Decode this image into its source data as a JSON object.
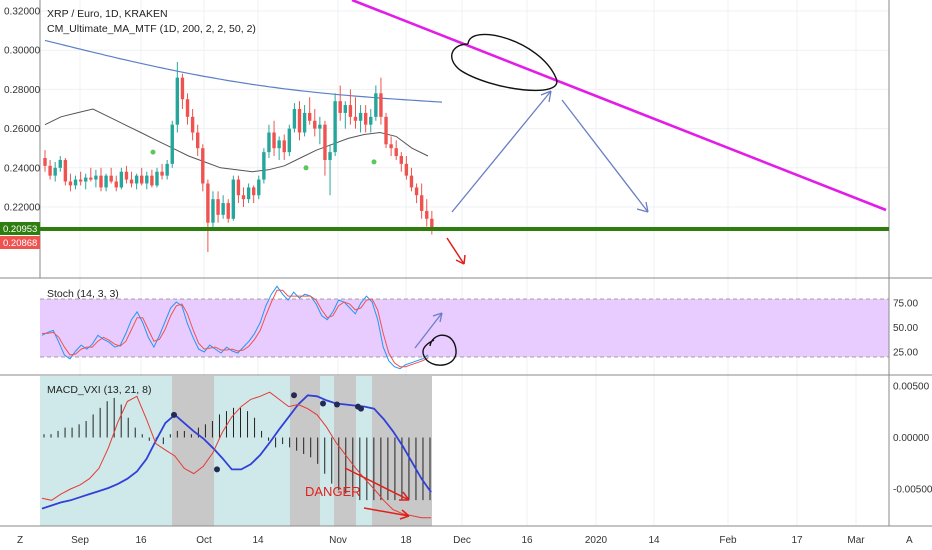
{
  "chart_data": [
    {
      "type": "candlestick",
      "title": "XRP / Euro, 1D, KRAKEN",
      "subtitle": "CM_Ultimate_MA_MTF (1D, 200, 2, 2, 50, 2)",
      "ylim": [
        0.2,
        0.32
      ],
      "yticks": [
        "0.32000",
        "0.30000",
        "0.28000",
        "0.26000",
        "0.24000",
        "0.22000"
      ],
      "price_tags": [
        {
          "label": "0.20953",
          "value": 0.20953,
          "color": "#2e7d0f"
        },
        {
          "label": "0.20868",
          "value": 0.20868,
          "color": "#ef5350"
        }
      ],
      "support_level": 0.20953,
      "candles": [
        [
          0.245,
          0.249,
          0.238,
          0.241
        ],
        [
          0.241,
          0.244,
          0.234,
          0.236
        ],
        [
          0.236,
          0.243,
          0.233,
          0.24
        ],
        [
          0.24,
          0.246,
          0.238,
          0.244
        ],
        [
          0.244,
          0.245,
          0.231,
          0.233
        ],
        [
          0.233,
          0.237,
          0.228,
          0.231
        ],
        [
          0.231,
          0.236,
          0.229,
          0.234
        ],
        [
          0.234,
          0.238,
          0.231,
          0.233
        ],
        [
          0.233,
          0.237,
          0.229,
          0.235
        ],
        [
          0.235,
          0.24,
          0.233,
          0.234
        ],
        [
          0.234,
          0.239,
          0.23,
          0.236
        ],
        [
          0.236,
          0.24,
          0.228,
          0.23
        ],
        [
          0.23,
          0.237,
          0.228,
          0.236
        ],
        [
          0.236,
          0.24,
          0.232,
          0.233
        ],
        [
          0.233,
          0.236,
          0.228,
          0.23
        ],
        [
          0.23,
          0.24,
          0.229,
          0.238
        ],
        [
          0.238,
          0.241,
          0.232,
          0.234
        ],
        [
          0.234,
          0.238,
          0.23,
          0.232
        ],
        [
          0.232,
          0.237,
          0.229,
          0.236
        ],
        [
          0.236,
          0.24,
          0.231,
          0.232
        ],
        [
          0.232,
          0.238,
          0.229,
          0.236
        ],
        [
          0.236,
          0.239,
          0.23,
          0.231
        ],
        [
          0.231,
          0.24,
          0.23,
          0.238
        ],
        [
          0.238,
          0.242,
          0.234,
          0.236
        ],
        [
          0.236,
          0.244,
          0.234,
          0.242
        ],
        [
          0.242,
          0.264,
          0.24,
          0.262
        ],
        [
          0.262,
          0.294,
          0.258,
          0.286
        ],
        [
          0.286,
          0.288,
          0.27,
          0.275
        ],
        [
          0.275,
          0.278,
          0.262,
          0.266
        ],
        [
          0.266,
          0.27,
          0.254,
          0.258
        ],
        [
          0.258,
          0.262,
          0.246,
          0.25
        ],
        [
          0.25,
          0.252,
          0.228,
          0.232
        ],
        [
          0.232,
          0.234,
          0.197,
          0.212
        ],
        [
          0.212,
          0.228,
          0.208,
          0.224
        ],
        [
          0.224,
          0.228,
          0.212,
          0.216
        ],
        [
          0.216,
          0.226,
          0.214,
          0.222
        ],
        [
          0.222,
          0.224,
          0.212,
          0.214
        ],
        [
          0.214,
          0.236,
          0.213,
          0.234
        ],
        [
          0.234,
          0.236,
          0.222,
          0.226
        ],
        [
          0.226,
          0.23,
          0.22,
          0.224
        ],
        [
          0.224,
          0.232,
          0.222,
          0.23
        ],
        [
          0.23,
          0.231,
          0.222,
          0.226
        ],
        [
          0.226,
          0.236,
          0.224,
          0.234
        ],
        [
          0.234,
          0.25,
          0.232,
          0.248
        ],
        [
          0.248,
          0.262,
          0.245,
          0.258
        ],
        [
          0.258,
          0.264,
          0.246,
          0.25
        ],
        [
          0.25,
          0.256,
          0.244,
          0.254
        ],
        [
          0.254,
          0.257,
          0.244,
          0.248
        ],
        [
          0.248,
          0.262,
          0.246,
          0.26
        ],
        [
          0.26,
          0.273,
          0.258,
          0.27
        ],
        [
          0.27,
          0.274,
          0.254,
          0.258
        ],
        [
          0.258,
          0.272,
          0.256,
          0.268
        ],
        [
          0.268,
          0.276,
          0.262,
          0.264
        ],
        [
          0.264,
          0.27,
          0.256,
          0.26
        ],
        [
          0.26,
          0.266,
          0.252,
          0.262
        ],
        [
          0.262,
          0.264,
          0.236,
          0.244
        ],
        [
          0.244,
          0.252,
          0.226,
          0.248
        ],
        [
          0.248,
          0.278,
          0.246,
          0.274
        ],
        [
          0.274,
          0.282,
          0.264,
          0.268
        ],
        [
          0.268,
          0.274,
          0.26,
          0.272
        ],
        [
          0.272,
          0.28,
          0.262,
          0.266
        ],
        [
          0.266,
          0.276,
          0.26,
          0.264
        ],
        [
          0.264,
          0.272,
          0.258,
          0.268
        ],
        [
          0.268,
          0.272,
          0.258,
          0.262
        ],
        [
          0.262,
          0.27,
          0.258,
          0.266
        ],
        [
          0.266,
          0.282,
          0.264,
          0.278
        ],
        [
          0.278,
          0.286,
          0.262,
          0.266
        ],
        [
          0.266,
          0.268,
          0.25,
          0.252
        ],
        [
          0.252,
          0.256,
          0.246,
          0.25
        ],
        [
          0.25,
          0.254,
          0.244,
          0.246
        ],
        [
          0.246,
          0.248,
          0.238,
          0.242
        ],
        [
          0.242,
          0.246,
          0.234,
          0.236
        ],
        [
          0.236,
          0.24,
          0.228,
          0.23
        ],
        [
          0.23,
          0.232,
          0.222,
          0.226
        ],
        [
          0.226,
          0.232,
          0.214,
          0.218
        ],
        [
          0.218,
          0.224,
          0.21,
          0.214
        ],
        [
          0.214,
          0.218,
          0.206,
          0.209
        ]
      ],
      "ma_slow": [
        0.305,
        0.2735
      ],
      "annotations": [
        {
          "type": "resistance-line",
          "color": "#e21de8"
        },
        {
          "type": "support-line",
          "color": "#2e7d0f"
        },
        {
          "type": "circle",
          "color": "#111111"
        },
        {
          "type": "arrow",
          "color": "#6a7fc4"
        },
        {
          "type": "arrow",
          "color": "#e0201b"
        }
      ]
    },
    {
      "type": "line",
      "title": "Stoch (14, 3, 3)",
      "yticks": [
        "75.00",
        "50.00",
        "25.00"
      ],
      "ylim": [
        0,
        100
      ],
      "band": [
        20,
        80
      ],
      "series": [
        {
          "color": "#2196f3",
          "values": [
            42,
            45,
            47,
            35,
            22,
            18,
            26,
            32,
            28,
            33,
            42,
            38,
            35,
            30,
            32,
            44,
            58,
            66,
            55,
            40,
            30,
            42,
            56,
            70,
            76,
            72,
            54,
            40,
            28,
            25,
            32,
            28,
            24,
            30,
            26,
            24,
            30,
            36,
            44,
            55,
            72,
            84,
            92,
            84,
            78,
            86,
            80,
            84,
            82,
            74,
            62,
            58,
            66,
            78,
            76,
            70,
            64,
            75,
            82,
            76,
            58,
            30,
            16,
            10,
            8,
            12,
            14,
            16,
            18,
            22
          ]
        },
        {
          "color": "#ef5350",
          "values": [
            44,
            44,
            45,
            40,
            30,
            22,
            23,
            28,
            30,
            30,
            36,
            40,
            37,
            33,
            31,
            36,
            48,
            60,
            60,
            48,
            36,
            38,
            48,
            62,
            72,
            74,
            64,
            48,
            34,
            28,
            29,
            30,
            27,
            27,
            28,
            26,
            27,
            31,
            38,
            47,
            62,
            76,
            88,
            88,
            82,
            82,
            82,
            82,
            82,
            78,
            68,
            60,
            62,
            72,
            76,
            74,
            68,
            70,
            78,
            79,
            68,
            44,
            24,
            14,
            10,
            10,
            12,
            14,
            16,
            19
          ]
        }
      ]
    },
    {
      "type": "line",
      "title": "MACD_VXI (13, 21, 8)",
      "yticks": [
        "0.00500",
        "0.00000",
        "-0.00500"
      ],
      "ylim": [
        -0.0078,
        0.0058
      ],
      "series": [
        {
          "color": "#3040d8",
          "values": [
            -0.0069,
            -0.0066,
            -0.0063,
            -0.0061,
            -0.0058,
            -0.0055,
            -0.0052,
            -0.0049,
            -0.0045,
            -0.004,
            -0.0033,
            -0.0021,
            -0.0003,
            0.0014,
            0.0022,
            0.0014,
            0.0006,
            -0.0001,
            -0.001,
            -0.002,
            -0.0031,
            -0.0031,
            -0.0026,
            -0.0017,
            -0.0005,
            0.0008,
            0.002,
            0.0032,
            0.0041,
            0.004,
            0.0036,
            0.0033,
            0.0032,
            0.0031,
            0.003,
            0.0028,
            0.0018,
            0.0006,
            -0.0008,
            -0.0024,
            -0.004,
            -0.0053
          ]
        },
        {
          "color": "#e53935",
          "values": [
            -0.0059,
            -0.0061,
            -0.0055,
            -0.005,
            -0.0046,
            -0.004,
            -0.003,
            -0.001,
            0.0015,
            0.0035,
            0.004,
            0.0018,
            -0.0006,
            -0.0012,
            -0.0018,
            -0.003,
            -0.0035,
            -0.0028,
            -0.0015,
            0.0005,
            0.002,
            0.003,
            0.0037,
            0.004,
            0.0044,
            0.0037,
            0.003,
            0.0032,
            0.0028,
            0.0022,
            0.001,
            -0.0005,
            -0.0017,
            -0.0029,
            -0.004,
            -0.005,
            -0.0061,
            -0.007,
            -0.0074,
            -0.0076,
            -0.0078,
            -0.0078
          ]
        }
      ],
      "histogram": [
        0.0001,
        0.0001,
        0.0002,
        0.0003,
        0.0003,
        0.0004,
        0.0005,
        0.0007,
        0.0009,
        0.0011,
        0.0012,
        0.001,
        0.0006,
        0.0003,
        0.0001,
        -0.0001,
        -0.0001,
        -0.0002,
        0.0001,
        0.0002,
        0.0002,
        0.0001,
        0.0003,
        0.0004,
        0.0005,
        0.0007,
        0.0008,
        0.0009,
        0.0009,
        0.0008,
        0.0006,
        0.0002,
        -0.0001,
        -0.0003,
        -0.0002,
        -0.0003,
        -0.0004,
        -0.0005,
        -0.0006,
        -0.0008,
        -0.0011,
        -0.0014,
        -0.0016,
        -0.0017,
        -0.0018,
        -0.0019,
        -0.0019,
        -0.0019,
        -0.0019,
        -0.0019,
        -0.0019,
        -0.0019,
        -0.0019,
        -0.0019,
        -0.0019,
        -0.0019
      ],
      "annotation_text": "DANGER"
    }
  ],
  "x_axis": {
    "ticks": [
      "Sep",
      "16",
      "Oct",
      "14",
      "Nov",
      "18",
      "Dec",
      "16",
      "2020",
      "14",
      "Feb",
      "17",
      "Mar"
    ]
  },
  "corner_buttons": {
    "left": "Z",
    "right": "A"
  }
}
